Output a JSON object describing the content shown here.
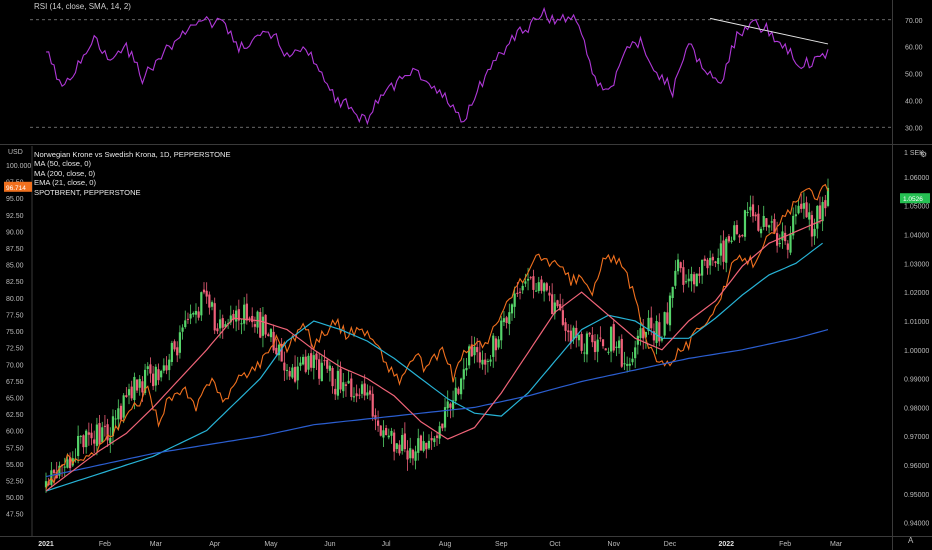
{
  "rsi_panel": {
    "legend": "RSI (14, close, SMA, 14, 2)",
    "levels": [
      70,
      30
    ],
    "tick_labels": [
      "70.00",
      "60.00",
      "50.00",
      "40.00",
      "30.00"
    ],
    "tick_values": [
      70,
      60,
      50,
      40,
      30
    ],
    "range": [
      26,
      74
    ],
    "color": "#b038d8",
    "trendline_color": "#e6e6e6"
  },
  "main_panel": {
    "legend": [
      "Norwegian Krone vs Swedish Krona, 1D, PEPPERSTONE",
      "MA (50, close, 0)",
      "MA (200, close, 0)",
      "EMA (21, close, 0)",
      "SPOTBRENT, PEPPERSTONE"
    ],
    "left_unit": "USD",
    "right_unit": "1 SEK",
    "gear_icon": "gear-icon",
    "auto_label": "A",
    "left_axis": {
      "range": [
        45.5,
        101.5
      ],
      "tick_values": [
        47.5,
        50,
        52.5,
        55,
        57.5,
        60,
        62.5,
        65,
        67.5,
        70,
        72.5,
        75,
        77.5,
        80,
        82.5,
        85,
        87.5,
        90,
        92.5,
        95,
        97.5,
        100
      ],
      "tick_labels": [
        "47.50",
        "50.00",
        "52.50",
        "55.00",
        "57.50",
        "60.00",
        "62.50",
        "65.00",
        "67.50",
        "70.00",
        "72.50",
        "75.00",
        "77.50",
        "80.00",
        "82.50",
        "85.00",
        "87.50",
        "90.00",
        "92.50",
        "95.00",
        "97.50",
        "100.000"
      ],
      "last_value": "96.714",
      "last_color": "#f0701e"
    },
    "right_axis": {
      "range": [
        0.9385,
        1.0676
      ],
      "tick_values": [
        0.94,
        0.95,
        0.96,
        0.97,
        0.98,
        0.99,
        1.0,
        1.01,
        1.02,
        1.03,
        1.04,
        1.05,
        1.06
      ],
      "tick_labels": [
        "0.94000",
        "0.95000",
        "0.96000",
        "0.97000",
        "0.98000",
        "0.99000",
        "1.00000",
        "1.01000",
        "1.02000",
        "1.03000",
        "1.04000",
        "1.05000",
        "1.06000"
      ],
      "last_value": "1.0526",
      "last_color": "#26c053"
    },
    "x_axis_labels": [
      "2021",
      "Feb",
      "Mar",
      "Apr",
      "May",
      "Jun",
      "Jul",
      "Aug",
      "Sep",
      "Oct",
      "Nov",
      "Dec",
      "2022",
      "Feb",
      "Mar"
    ],
    "x_axis_positions": [
      0,
      22,
      41,
      63,
      84,
      106,
      127,
      149,
      170,
      190,
      212,
      233,
      254,
      276,
      295
    ],
    "colors": {
      "up": "#55d46a",
      "down": "#f0607a",
      "ma50": "#27b3d6",
      "ma200": "#2b5ed0",
      "ema21": "#f06478",
      "brent": "#f0701e"
    }
  },
  "chart_data": {
    "type": "line",
    "title": "Norwegian Krone vs Swedish Krona, 1D, PEPPERSTONE",
    "x_units": "trading days since start of 2021 (approx.)",
    "nok_sek_close": {
      "x": [
        0,
        8,
        16,
        24,
        30,
        38,
        46,
        52,
        60,
        64,
        68,
        74,
        82,
        92,
        100,
        108,
        118,
        128,
        136,
        146,
        152,
        158,
        166,
        174,
        178,
        184,
        190,
        198,
        204,
        212,
        218,
        224,
        230,
        236,
        240,
        246,
        254,
        262,
        270,
        276,
        282,
        286,
        292
      ],
      "y": [
        0.953,
        0.962,
        0.972,
        0.97,
        0.985,
        0.99,
        0.997,
        1.006,
        1.02,
        1.006,
        1.012,
        1.013,
        1.007,
        0.992,
        0.996,
        0.989,
        0.985,
        0.97,
        0.965,
        0.97,
        0.985,
        0.997,
        1.0,
        1.017,
        1.025,
        1.022,
        1.013,
        1.003,
        1.002,
        1.004,
        0.993,
        1.01,
        1.005,
        1.027,
        1.022,
        1.032,
        1.035,
        1.047,
        1.043,
        1.036,
        1.05,
        1.043,
        1.0526
      ]
    },
    "series": [
      {
        "name": "SPOTBRENT, PEPPERSTONE",
        "axis": "left",
        "x": [
          0,
          4,
          8,
          14,
          20,
          26,
          32,
          38,
          42,
          46,
          52,
          56,
          62,
          66,
          70,
          74,
          80,
          86,
          90,
          96,
          100,
          104,
          108,
          112,
          118,
          124,
          128,
          132,
          138,
          142,
          148,
          152,
          156,
          160,
          164,
          168,
          172,
          176,
          180,
          184,
          188,
          192,
          196,
          200,
          204,
          208,
          212,
          216,
          220,
          224,
          228,
          232,
          236,
          240,
          244,
          248,
          252,
          256,
          260,
          264,
          268,
          272,
          276,
          280,
          284,
          288,
          292
        ],
        "y": [
          51.0,
          53.5,
          56.0,
          55.0,
          58.0,
          60.0,
          63.0,
          66.0,
          61.5,
          65.0,
          65.8,
          63.2,
          68.5,
          64.2,
          66.7,
          68.5,
          70.2,
          74.0,
          72.5,
          76.0,
          73.0,
          74.8,
          76.5,
          74.5,
          75.5,
          72.5,
          69.5,
          67.5,
          71.5,
          69.0,
          72.5,
          68.0,
          71.5,
          73.5,
          72.5,
          76.0,
          78.8,
          82.0,
          83.8,
          86.3,
          85.5,
          84.5,
          82.5,
          83.0,
          80.5,
          85.5,
          86.3,
          84.0,
          80.0,
          73.5,
          71.2,
          70.0,
          72.0,
          73.0,
          75.5,
          77.5,
          79.8,
          84.5,
          86.3,
          85.3,
          88.5,
          89.5,
          92.5,
          94.2,
          96.0,
          95.5,
          96.714
        ]
      },
      {
        "name": "MA (50, close, 0)",
        "axis": "right",
        "x": [
          0,
          20,
          40,
          60,
          80,
          90,
          100,
          110,
          120,
          130,
          140,
          150,
          160,
          170,
          180,
          190,
          200,
          210,
          220,
          230,
          240,
          250,
          260,
          270,
          280,
          290
        ],
        "y": [
          0.951,
          0.957,
          0.963,
          0.972,
          0.99,
          1.003,
          1.01,
          1.007,
          1.003,
          0.997,
          0.99,
          0.983,
          0.978,
          0.977,
          0.985,
          0.996,
          1.007,
          1.012,
          1.01,
          1.004,
          1.004,
          1.011,
          1.019,
          1.026,
          1.03,
          1.037
        ]
      },
      {
        "name": "MA (200, close, 0)",
        "axis": "right",
        "x": [
          0,
          20,
          40,
          60,
          80,
          100,
          120,
          140,
          160,
          180,
          200,
          220,
          240,
          260,
          280,
          292
        ],
        "y": [
          0.956,
          0.96,
          0.964,
          0.967,
          0.97,
          0.974,
          0.976,
          0.978,
          0.98,
          0.984,
          0.989,
          0.993,
          0.997,
          1.0,
          1.004,
          1.007
        ]
      },
      {
        "name": "EMA (21, close, 0)",
        "axis": "right",
        "x": [
          0,
          10,
          20,
          30,
          40,
          50,
          60,
          70,
          80,
          90,
          100,
          110,
          120,
          130,
          140,
          150,
          160,
          170,
          180,
          190,
          200,
          210,
          220,
          230,
          240,
          250,
          260,
          270,
          280,
          290
        ],
        "y": [
          0.951,
          0.958,
          0.965,
          0.971,
          0.98,
          0.99,
          1.0,
          1.011,
          1.01,
          1.007,
          1.0,
          0.994,
          0.99,
          0.984,
          0.975,
          0.969,
          0.973,
          0.985,
          0.999,
          1.013,
          1.02,
          1.012,
          1.004,
          1.0,
          1.01,
          1.017,
          1.029,
          1.037,
          1.041,
          1.045
        ]
      },
      {
        "name": "RSI (14, close, SMA, 14, 2)",
        "axis": "rsi",
        "x": [
          0,
          6,
          12,
          18,
          24,
          30,
          36,
          42,
          48,
          54,
          60,
          66,
          72,
          78,
          84,
          90,
          96,
          102,
          108,
          114,
          120,
          126,
          132,
          138,
          144,
          150,
          156,
          162,
          168,
          174,
          180,
          186,
          192,
          198,
          204,
          210,
          216,
          222,
          228,
          234,
          240,
          246,
          252,
          258,
          264,
          270,
          276,
          282,
          288,
          292
        ],
        "y": [
          58,
          44,
          52,
          63,
          55,
          60,
          48,
          55,
          62,
          67,
          70,
          69,
          58,
          63,
          66,
          56,
          60,
          51,
          42,
          37,
          32,
          43,
          47,
          52,
          44,
          40,
          31,
          45,
          55,
          63,
          68,
          72,
          69,
          70,
          51,
          42,
          58,
          63,
          48,
          44,
          62,
          52,
          46,
          63,
          69,
          65,
          59,
          52,
          56,
          59
        ]
      }
    ]
  }
}
